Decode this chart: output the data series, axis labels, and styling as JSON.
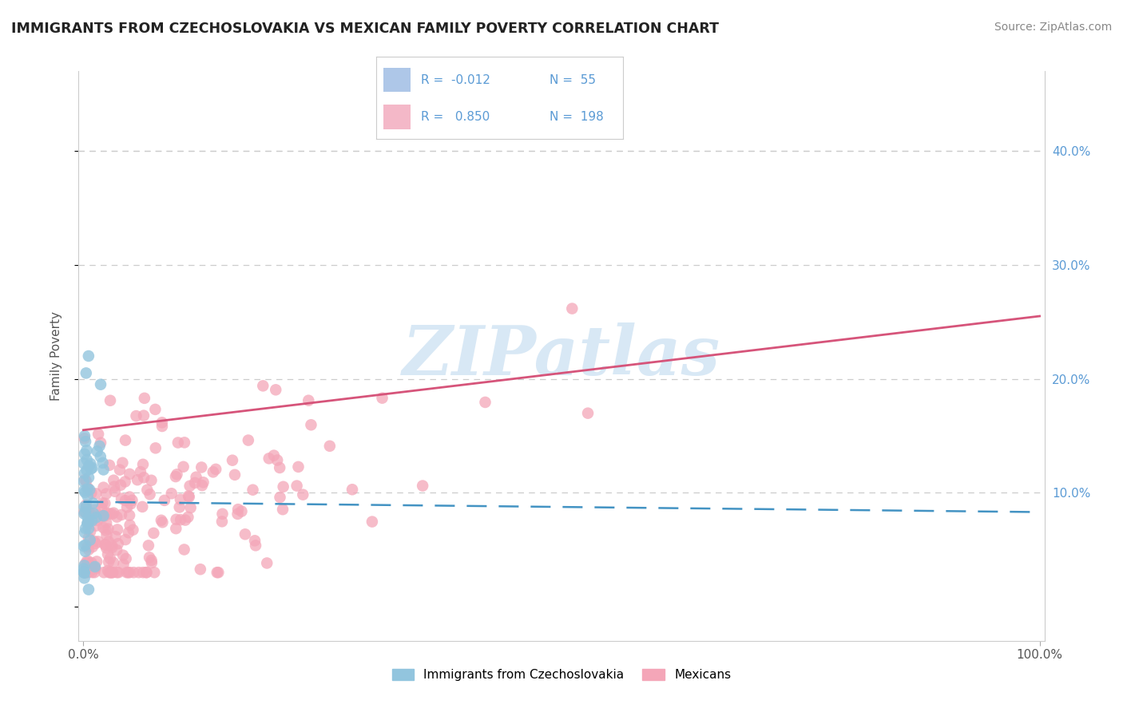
{
  "title": "IMMIGRANTS FROM CZECHOSLOVAKIA VS MEXICAN FAMILY POVERTY CORRELATION CHART",
  "source": "Source: ZipAtlas.com",
  "ylabel": "Family Poverty",
  "xlim": [
    -0.005,
    1.005
  ],
  "ylim": [
    -0.03,
    0.47
  ],
  "yticks": [
    0.0,
    0.1,
    0.2,
    0.3,
    0.4
  ],
  "ytick_labels_right": [
    "",
    "10.0%",
    "20.0%",
    "30.0%",
    "40.0%"
  ],
  "xtick_vals": [
    0.0,
    1.0
  ],
  "xtick_labels": [
    "0.0%",
    "100.0%"
  ],
  "legend_blue_R": "-0.012",
  "legend_blue_N": "55",
  "legend_pink_R": "0.850",
  "legend_pink_N": "198",
  "blue_color": "#92c5de",
  "pink_color": "#f4a6b8",
  "blue_line_color": "#4393c3",
  "pink_line_color": "#d6547a",
  "legend_R_color": "#5b9bd5",
  "legend_N_color": "#5b9bd5",
  "watermark_color": "#d8e8f5",
  "watermark": "ZIPatlas",
  "legend_label_blue": "Immigrants from Czechoslovakia",
  "legend_label_pink": "Mexicans",
  "blue_seed": 42,
  "pink_seed": 77,
  "grid_color": "#cccccc"
}
